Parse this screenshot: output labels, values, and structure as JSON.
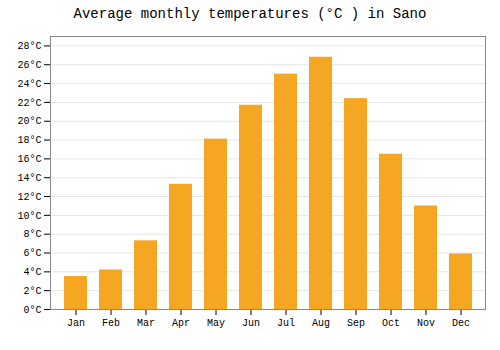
{
  "chart_data": {
    "type": "bar",
    "title": "Average monthly temperatures (°C ) in Sano",
    "categories": [
      "Jan",
      "Feb",
      "Mar",
      "Apr",
      "May",
      "Jun",
      "Jul",
      "Aug",
      "Sep",
      "Oct",
      "Nov",
      "Dec"
    ],
    "values": [
      3.5,
      4.2,
      7.3,
      13.3,
      18.1,
      21.7,
      25.0,
      26.8,
      22.4,
      16.5,
      11.0,
      5.9
    ],
    "color": "#F5A623",
    "ylim": [
      0,
      29
    ],
    "yticks": [
      {
        "value": 0,
        "label": "0°C"
      },
      {
        "value": 2,
        "label": "2°C"
      },
      {
        "value": 4,
        "label": "4°C"
      },
      {
        "value": 6,
        "label": "6°C"
      },
      {
        "value": 8,
        "label": "8°C"
      },
      {
        "value": 10,
        "label": "10°C"
      },
      {
        "value": 12,
        "label": "12°C"
      },
      {
        "value": 14,
        "label": "14°C"
      },
      {
        "value": 16,
        "label": "16°C"
      },
      {
        "value": 18,
        "label": "18°C"
      },
      {
        "value": 20,
        "label": "20°C"
      },
      {
        "value": 22,
        "label": "22°C"
      },
      {
        "value": 24,
        "label": "24°C"
      },
      {
        "value": 26,
        "label": "26°C"
      },
      {
        "value": 28,
        "label": "28°C"
      }
    ],
    "grid": true
  }
}
